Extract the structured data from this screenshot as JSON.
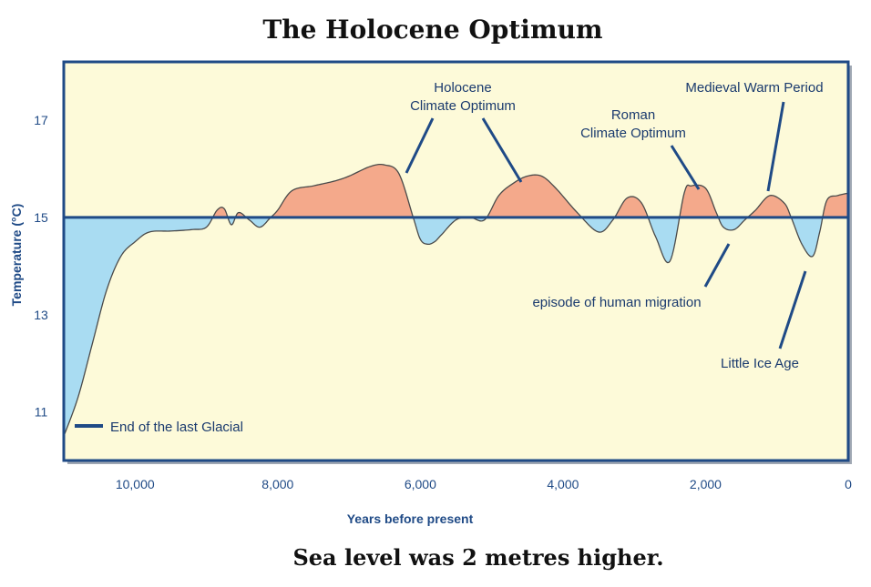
{
  "chart_data": {
    "type": "area",
    "title": "The Holocene Optimum",
    "subtitle": "Sea level was 2 metres higher.",
    "xlabel": "Years before present",
    "ylabel": "Temperature (°C)",
    "xlim": [
      11000,
      0
    ],
    "ylim": [
      10.0,
      18.2
    ],
    "baseline": 15,
    "x_ticks": [
      {
        "value": 10000,
        "label": "10,000"
      },
      {
        "value": 8000,
        "label": "8,000"
      },
      {
        "value": 6000,
        "label": "6,000"
      },
      {
        "value": 4000,
        "label": "4,000"
      },
      {
        "value": 2000,
        "label": "2,000"
      },
      {
        "value": 0,
        "label": "0"
      }
    ],
    "y_ticks": [
      {
        "value": 17,
        "label": "17"
      },
      {
        "value": 15,
        "label": "15"
      },
      {
        "value": 13,
        "label": "13"
      },
      {
        "value": 11,
        "label": "11"
      }
    ],
    "colors": {
      "warm": "#f4a98b",
      "cold": "#a9dcf2",
      "background": "#fdfad9",
      "border": "#1f4a86",
      "line": "#1f4a86",
      "curve": "#4a4a4a"
    },
    "x": [
      11000,
      10800,
      10600,
      10400,
      10200,
      10000,
      9800,
      9500,
      9200,
      9000,
      8850,
      8750,
      8650,
      8550,
      8400,
      8250,
      8100,
      8000,
      7800,
      7500,
      7200,
      7000,
      6700,
      6500,
      6300,
      6100,
      6000,
      5900,
      5800,
      5700,
      5500,
      5300,
      5100,
      4900,
      4700,
      4500,
      4300,
      4100,
      3800,
      3500,
      3300,
      3100,
      2900,
      2700,
      2500,
      2300,
      2200,
      2000,
      1850,
      1750,
      1600,
      1450,
      1300,
      1100,
      900,
      800,
      650,
      500,
      400,
      300,
      150,
      0
    ],
    "y": [
      10.5,
      11.3,
      12.4,
      13.5,
      14.2,
      14.5,
      14.7,
      14.72,
      14.75,
      14.8,
      15.15,
      15.18,
      14.85,
      15.1,
      14.95,
      14.8,
      15.0,
      15.15,
      15.55,
      15.65,
      15.75,
      15.85,
      16.05,
      16.08,
      15.9,
      15.0,
      14.55,
      14.45,
      14.5,
      14.65,
      14.95,
      15.0,
      14.95,
      15.45,
      15.7,
      15.85,
      15.85,
      15.6,
      15.1,
      14.7,
      14.95,
      15.4,
      15.3,
      14.6,
      14.1,
      15.5,
      15.65,
      15.6,
      15.1,
      14.8,
      14.75,
      14.95,
      15.15,
      15.45,
      15.3,
      15.0,
      14.45,
      14.2,
      14.7,
      15.35,
      15.45,
      15.5
    ],
    "annotations": [
      {
        "lines": [
          "Holocene",
          "Climate Optimum"
        ]
      },
      {
        "lines": [
          "Roman",
          "Climate Optimum"
        ]
      },
      {
        "lines": [
          "Medieval Warm Period"
        ]
      },
      {
        "lines": [
          "episode of human migration"
        ]
      },
      {
        "lines": [
          "Little Ice Age"
        ]
      }
    ],
    "legend": {
      "label": "End of the last Glacial"
    }
  }
}
